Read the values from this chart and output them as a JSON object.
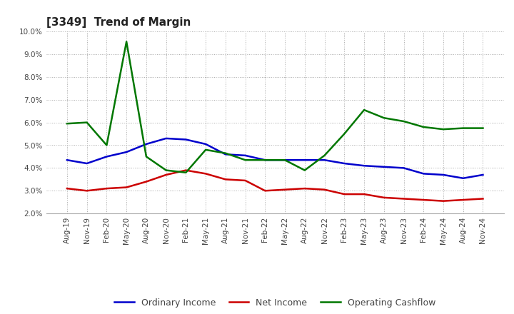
{
  "title": "[3349]  Trend of Margin",
  "x_labels": [
    "Aug-19",
    "Nov-19",
    "Feb-20",
    "May-20",
    "Aug-20",
    "Nov-20",
    "Feb-21",
    "May-21",
    "Aug-21",
    "Nov-21",
    "Feb-22",
    "May-22",
    "Aug-22",
    "Nov-22",
    "Feb-23",
    "May-23",
    "Aug-23",
    "Nov-23",
    "Feb-24",
    "May-24",
    "Aug-24",
    "Nov-24"
  ],
  "ordinary_income": [
    4.35,
    4.2,
    4.5,
    4.7,
    5.05,
    5.3,
    5.25,
    5.05,
    4.6,
    4.55,
    4.35,
    4.35,
    4.35,
    4.35,
    4.2,
    4.1,
    4.05,
    4.0,
    3.75,
    3.7,
    3.55,
    3.7
  ],
  "net_income": [
    3.1,
    3.0,
    3.1,
    3.15,
    3.4,
    3.7,
    3.9,
    3.75,
    3.5,
    3.45,
    3.0,
    3.05,
    3.1,
    3.05,
    2.85,
    2.85,
    2.7,
    2.65,
    2.6,
    2.55,
    2.6,
    2.65
  ],
  "operating_cashflow": [
    5.95,
    6.0,
    5.0,
    9.55,
    4.5,
    3.9,
    3.8,
    4.8,
    4.65,
    4.35,
    4.35,
    4.35,
    3.9,
    4.55,
    5.5,
    6.55,
    6.2,
    6.05,
    5.8,
    5.7,
    5.75,
    5.75
  ],
  "ylim": [
    2.0,
    10.0
  ],
  "yticks": [
    2.0,
    3.0,
    4.0,
    5.0,
    6.0,
    7.0,
    8.0,
    9.0,
    10.0
  ],
  "line_colors": {
    "ordinary_income": "#0000cc",
    "net_income": "#cc0000",
    "operating_cashflow": "#007700"
  },
  "legend_labels": [
    "Ordinary Income",
    "Net Income",
    "Operating Cashflow"
  ],
  "background_color": "#ffffff",
  "grid_color": "#999999"
}
